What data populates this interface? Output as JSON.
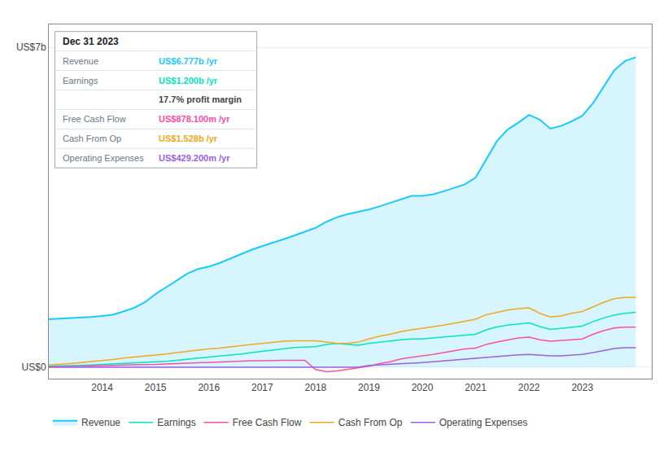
{
  "chart_data": {
    "type": "line",
    "x": [
      2013.0,
      2013.2,
      2013.4,
      2013.6,
      2013.8,
      2014.0,
      2014.2,
      2014.4,
      2014.6,
      2014.8,
      2015.0,
      2015.2,
      2015.4,
      2015.6,
      2015.8,
      2016.0,
      2016.2,
      2016.4,
      2016.6,
      2016.8,
      2017.0,
      2017.2,
      2017.4,
      2017.6,
      2017.8,
      2018.0,
      2018.2,
      2018.4,
      2018.6,
      2018.8,
      2019.0,
      2019.2,
      2019.4,
      2019.6,
      2019.8,
      2020.0,
      2020.2,
      2020.4,
      2020.6,
      2020.8,
      2021.0,
      2021.2,
      2021.4,
      2021.6,
      2021.8,
      2022.0,
      2022.2,
      2022.4,
      2022.6,
      2022.8,
      2023.0,
      2023.2,
      2023.4,
      2023.6,
      2023.8,
      2024.0
    ],
    "series": [
      {
        "name": "Revenue",
        "color": "#1ac9ff",
        "type": "area",
        "values": [
          1.05,
          1.06,
          1.07,
          1.08,
          1.1,
          1.12,
          1.15,
          1.22,
          1.3,
          1.42,
          1.6,
          1.75,
          1.9,
          2.05,
          2.15,
          2.2,
          2.28,
          2.38,
          2.48,
          2.57,
          2.65,
          2.72,
          2.8,
          2.88,
          2.96,
          3.05,
          3.18,
          3.28,
          3.35,
          3.4,
          3.45,
          3.52,
          3.6,
          3.68,
          3.75,
          3.75,
          3.78,
          3.85,
          3.92,
          4.0,
          4.15,
          4.55,
          4.95,
          5.2,
          5.35,
          5.52,
          5.42,
          5.22,
          5.28,
          5.38,
          5.5,
          5.78,
          6.15,
          6.5,
          6.7,
          6.78
        ]
      },
      {
        "name": "Earnings",
        "color": "#00e5c0",
        "type": "line",
        "values": [
          0.02,
          0.025,
          0.03,
          0.04,
          0.05,
          0.06,
          0.07,
          0.08,
          0.09,
          0.1,
          0.11,
          0.13,
          0.15,
          0.18,
          0.2,
          0.22,
          0.24,
          0.27,
          0.29,
          0.32,
          0.35,
          0.38,
          0.41,
          0.43,
          0.44,
          0.45,
          0.5,
          0.52,
          0.5,
          0.48,
          0.52,
          0.55,
          0.58,
          0.6,
          0.62,
          0.62,
          0.64,
          0.66,
          0.68,
          0.7,
          0.72,
          0.82,
          0.88,
          0.92,
          0.95,
          0.97,
          0.89,
          0.83,
          0.85,
          0.88,
          0.9,
          1.0,
          1.08,
          1.14,
          1.18,
          1.2
        ]
      },
      {
        "name": "Free Cash Flow",
        "color": "#ff4da6",
        "type": "line",
        "values": [
          0.01,
          0.01,
          0.02,
          0.02,
          0.03,
          0.03,
          0.04,
          0.05,
          0.05,
          0.06,
          0.06,
          0.07,
          0.08,
          0.09,
          0.1,
          0.1,
          0.11,
          0.12,
          0.13,
          0.14,
          0.14,
          0.15,
          0.15,
          0.15,
          0.15,
          -0.05,
          -0.1,
          -0.08,
          -0.05,
          -0.02,
          0.02,
          0.08,
          0.12,
          0.18,
          0.22,
          0.25,
          0.28,
          0.32,
          0.36,
          0.4,
          0.42,
          0.5,
          0.55,
          0.6,
          0.64,
          0.66,
          0.6,
          0.57,
          0.58,
          0.6,
          0.62,
          0.72,
          0.8,
          0.86,
          0.878,
          0.878
        ]
      },
      {
        "name": "Cash From Op",
        "color": "#f0a820",
        "type": "line",
        "values": [
          0.05,
          0.06,
          0.08,
          0.1,
          0.12,
          0.14,
          0.17,
          0.2,
          0.22,
          0.24,
          0.26,
          0.29,
          0.32,
          0.35,
          0.38,
          0.4,
          0.42,
          0.45,
          0.47,
          0.5,
          0.52,
          0.55,
          0.57,
          0.58,
          0.58,
          0.58,
          0.55,
          0.52,
          0.52,
          0.55,
          0.62,
          0.68,
          0.72,
          0.78,
          0.82,
          0.85,
          0.88,
          0.92,
          0.96,
          1.0,
          1.05,
          1.15,
          1.2,
          1.25,
          1.28,
          1.3,
          1.18,
          1.1,
          1.12,
          1.18,
          1.22,
          1.32,
          1.42,
          1.5,
          1.528,
          1.528
        ]
      },
      {
        "name": "Operating Expenses",
        "color": "#9b5fe0",
        "type": "line",
        "values": [
          0.0,
          0.0,
          0.0,
          0.0,
          0.0,
          0.0,
          0.0,
          0.0,
          0.0,
          0.0,
          0.0,
          0.0,
          0.0,
          0.0,
          0.0,
          0.0,
          0.0,
          0.0,
          0.0,
          0.0,
          0.0,
          0.0,
          0.0,
          0.0,
          0.0,
          0.0,
          0.0,
          0.0,
          0.0,
          0.0,
          0.04,
          0.05,
          0.06,
          0.07,
          0.08,
          0.1,
          0.12,
          0.14,
          0.16,
          0.18,
          0.2,
          0.22,
          0.24,
          0.26,
          0.27,
          0.28,
          0.26,
          0.25,
          0.25,
          0.26,
          0.28,
          0.32,
          0.37,
          0.41,
          0.429,
          0.429
        ]
      }
    ],
    "xlim": [
      2013.0,
      2024.3
    ],
    "xticks": [
      2014,
      2015,
      2016,
      2017,
      2018,
      2019,
      2020,
      2021,
      2022,
      2023
    ],
    "ylim": [
      -0.25,
      7.5
    ],
    "yticks": [
      {
        "value": 0,
        "label": "US$0"
      },
      {
        "value": 7,
        "label": "US$7b"
      }
    ],
    "grid": true,
    "legend": "bottom",
    "annotations": [
      [
        "Dec 31 2023"
      ],
      [
        "Revenue",
        "US$6.777b /yr"
      ],
      [
        "Earnings",
        "US$1.200b /yr"
      ],
      [
        "17.7% profit margin"
      ],
      [
        "Free Cash Flow",
        "US$878.100m /yr"
      ],
      [
        "Cash From Op",
        "US$1.528b /yr"
      ],
      [
        "Operating Expenses",
        "US$429.200m /yr"
      ]
    ]
  }
}
